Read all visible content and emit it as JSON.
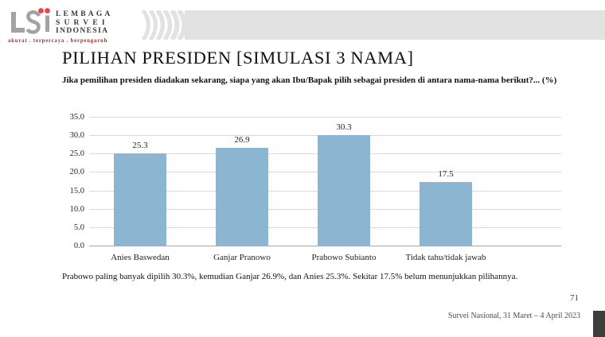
{
  "logo": {
    "org_lines": [
      "LEMBAGA",
      "SURVEI",
      "INDONESIA"
    ],
    "tagline": "akurat . terpercaya . berpengaruh"
  },
  "slide": {
    "title": "PILIHAN PRESIDEN [SIMULASI 3 NAMA]",
    "subtitle": "Jika pemilihan presiden diadakan sekarang, siapa yang akan Ibu/Bapak pilih sebagai presiden di antara nama-nama berikut?... (%)",
    "caption": "Prabowo paling banyak dipilih 30.3%, kemudian Ganjar 26.9%, dan Anies 25.3%. Sekitar 17.5% belum menunjukkan pilihannya.",
    "page_number": "71",
    "footer": "Survei Nasional, 31 Maret – 4 April 2023"
  },
  "chart_data": {
    "type": "bar",
    "categories": [
      "Anies Baswedan",
      "Ganjar Pranowo",
      "Prabowo Subianto",
      "Tidak tahu/tidak jawab"
    ],
    "values": [
      25.3,
      26.9,
      30.3,
      17.5
    ],
    "value_labels": [
      "25.3",
      "26.9",
      "30.3",
      "17.5"
    ],
    "title": "",
    "xlabel": "",
    "ylabel": "",
    "ylim": [
      0,
      35
    ],
    "ytick_step": 5,
    "ytick_labels": [
      "0.0",
      "5.0",
      "10.0",
      "15.0",
      "20.0",
      "25.0",
      "30.0",
      "35.0"
    ],
    "grid": true,
    "legend": "none",
    "bar_color": "#8bb5d1"
  },
  "colors": {
    "bar": "#8bb5d1",
    "header_band": "#e2e2e2",
    "logo_gray": "#a3a3a3",
    "accent_red": "#e8474d",
    "tagline_red": "#93382f",
    "gridline": "#d9d9d9",
    "corner_tab": "#3e3e3e"
  }
}
